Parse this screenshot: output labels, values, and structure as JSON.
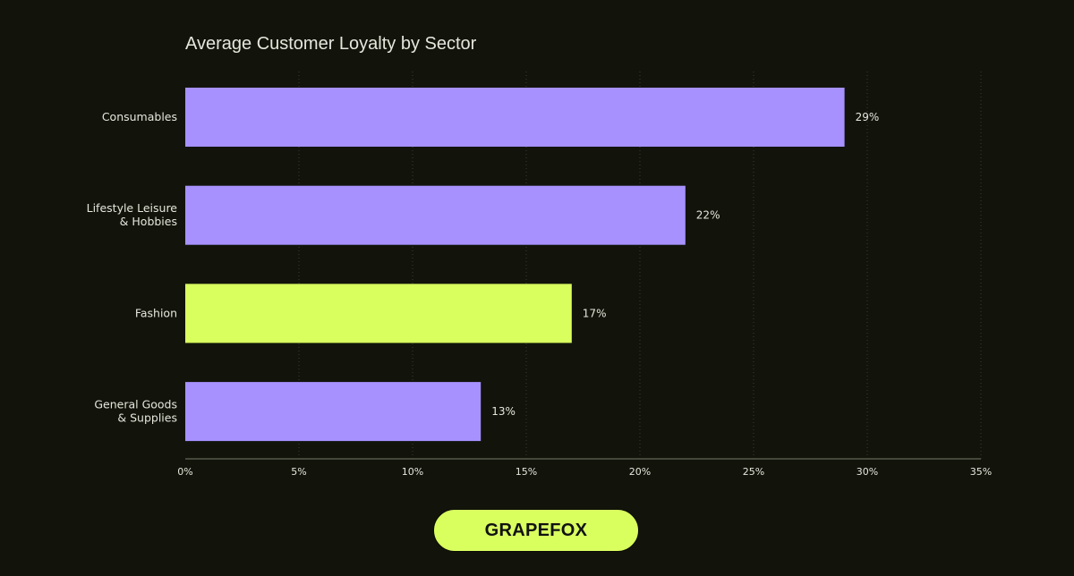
{
  "chart_data": {
    "type": "bar",
    "orientation": "horizontal",
    "title": "Average Customer Loyalty by Sector",
    "categories": [
      "Consumables",
      "Lifestyle Leisure\n& Hobbies",
      "Fashion",
      "General Goods\n& Supplies"
    ],
    "values": [
      29,
      22,
      17,
      13
    ],
    "data_labels": [
      "29%",
      "22%",
      "17%",
      "13%"
    ],
    "highlight": [
      false,
      false,
      true,
      false
    ],
    "xlim": [
      0,
      35
    ],
    "xticks": [
      0,
      5,
      10,
      15,
      20,
      25,
      30,
      35
    ],
    "xtick_labels": [
      "0%",
      "5%",
      "10%",
      "15%",
      "20%",
      "25%",
      "30%",
      "35%"
    ],
    "xlabel": "",
    "ylabel": "",
    "grid": "vertical dotted",
    "colors": {
      "bar": "#a791ff",
      "highlight": "#d9ff5f",
      "background": "#12140b",
      "text": "#e6e6dc"
    }
  },
  "brand": {
    "label": "GRAPEFOX"
  }
}
